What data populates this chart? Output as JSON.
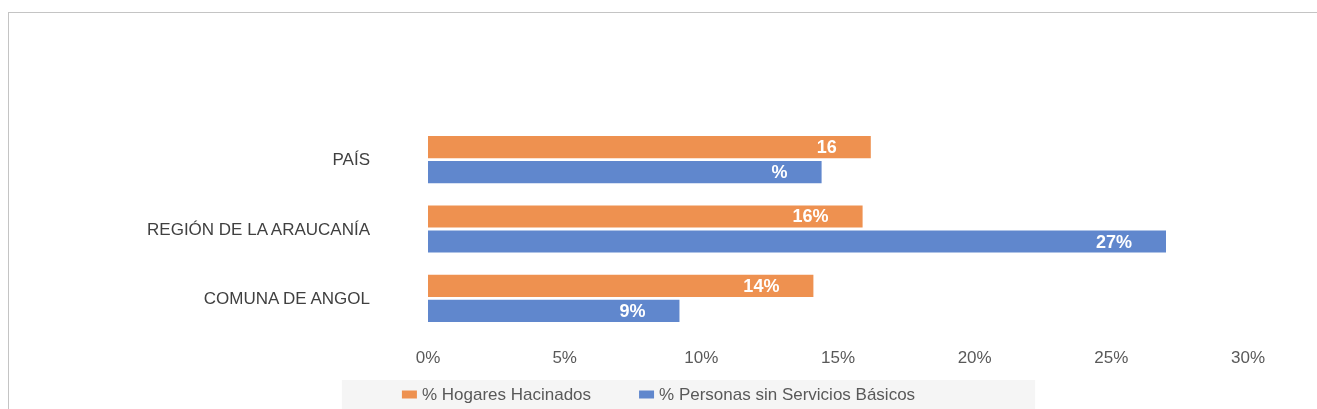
{
  "chart_data": {
    "type": "bar",
    "orientation": "horizontal",
    "categories": [
      "PAÍS",
      "REGIÓN DE LA ARAUCANÍA",
      "COMUNA DE ANGOL"
    ],
    "series": [
      {
        "name": "% Hogares Hacinados",
        "color": "#ee9150",
        "values": [
          16.2,
          15.9,
          14.1
        ],
        "value_labels": [
          "16",
          "16%",
          "14%"
        ]
      },
      {
        "name": "% Personas sin Servicios Básicos",
        "color": "#6087cd",
        "values": [
          14.4,
          27.0,
          9.2
        ],
        "value_labels": [
          "%",
          "27%",
          "9%"
        ]
      }
    ],
    "xlim": [
      0,
      30
    ],
    "xticks": [
      {
        "value": 0,
        "label": "0%"
      },
      {
        "value": 5,
        "label": "5%"
      },
      {
        "value": 10,
        "label": "10%"
      },
      {
        "value": 15,
        "label": "15%"
      },
      {
        "value": 20,
        "label": "20%"
      },
      {
        "value": 25,
        "label": "25%"
      },
      {
        "value": 30,
        "label": "30%"
      }
    ],
    "grid": false,
    "legend": "bottom"
  }
}
